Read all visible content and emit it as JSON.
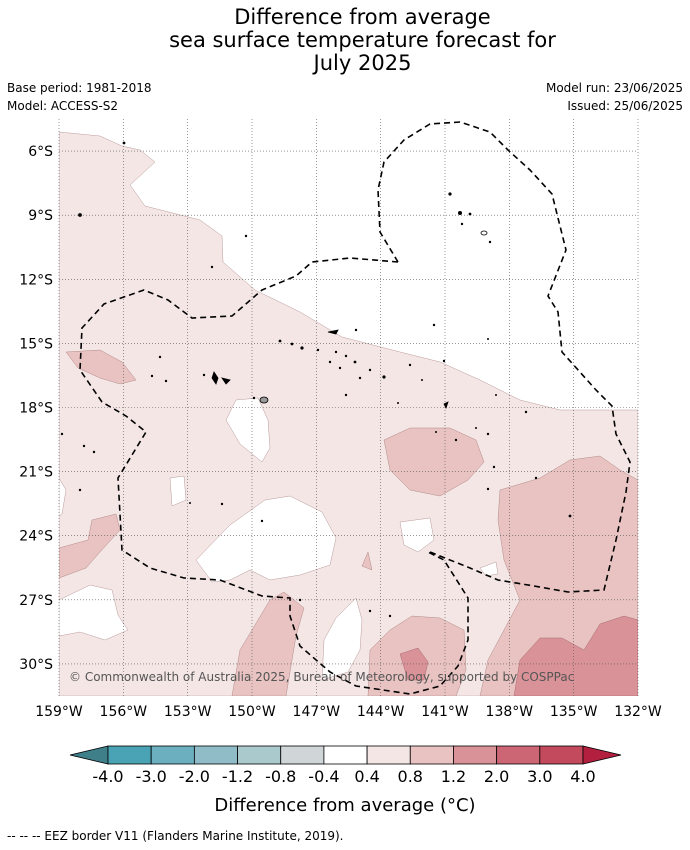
{
  "title_lines": [
    "Difference from average",
    "sea surface temperature forecast for",
    "July 2025"
  ],
  "meta_left": [
    "Base period: 1981-2018",
    "Model: ACCESS-S2"
  ],
  "meta_right": [
    "Model run: 23/06/2025",
    "Issued: 25/06/2025"
  ],
  "copyright": "© Commonwealth of Australia 2025, Bureau of Meteorology, supported by COSPPac",
  "footnote": "--  --  -- EEZ border V11 (Flanders Marine Institute, 2019).",
  "map": {
    "lon_range": [
      -159,
      -132
    ],
    "lat_range": [
      -31.5,
      -4.5
    ],
    "lon_ticks": [
      {
        "value": -159,
        "label": "159°W"
      },
      {
        "value": -156,
        "label": "156°W"
      },
      {
        "value": -153,
        "label": "153°W"
      },
      {
        "value": -150,
        "label": "150°W"
      },
      {
        "value": -147,
        "label": "147°W"
      },
      {
        "value": -144,
        "label": "144°W"
      },
      {
        "value": -141,
        "label": "141°W"
      },
      {
        "value": -138,
        "label": "138°W"
      },
      {
        "value": -135,
        "label": "135°W"
      },
      {
        "value": -132,
        "label": "132°W"
      }
    ],
    "lat_ticks": [
      {
        "value": -6,
        "label": "6°S"
      },
      {
        "value": -9,
        "label": "9°S"
      },
      {
        "value": -12,
        "label": "12°S"
      },
      {
        "value": -15,
        "label": "15°S"
      },
      {
        "value": -18,
        "label": "18°S"
      },
      {
        "value": -21,
        "label": "21°S"
      },
      {
        "value": -24,
        "label": "24°S"
      },
      {
        "value": -27,
        "label": "27°S"
      },
      {
        "value": -30,
        "label": "30°S"
      }
    ],
    "grid": "dotted"
  },
  "colorbar": {
    "label": "Difference from average (°C)",
    "tick_labels": [
      "-4.0",
      "-3.0",
      "-2.0",
      "-1.2",
      "-0.8",
      "-0.4",
      "0.4",
      "0.8",
      "1.2",
      "2.0",
      "3.0",
      "4.0"
    ],
    "colors": [
      "#3f7f8a",
      "#4aa3b5",
      "#6cb0c0",
      "#8fbcc6",
      "#aac9cd",
      "#d0d6d8",
      "#ffffff",
      "#f5e6e6",
      "#e8c3c1",
      "#d99297",
      "#cc6675",
      "#c24a5c",
      "#b3203f"
    ]
  }
}
